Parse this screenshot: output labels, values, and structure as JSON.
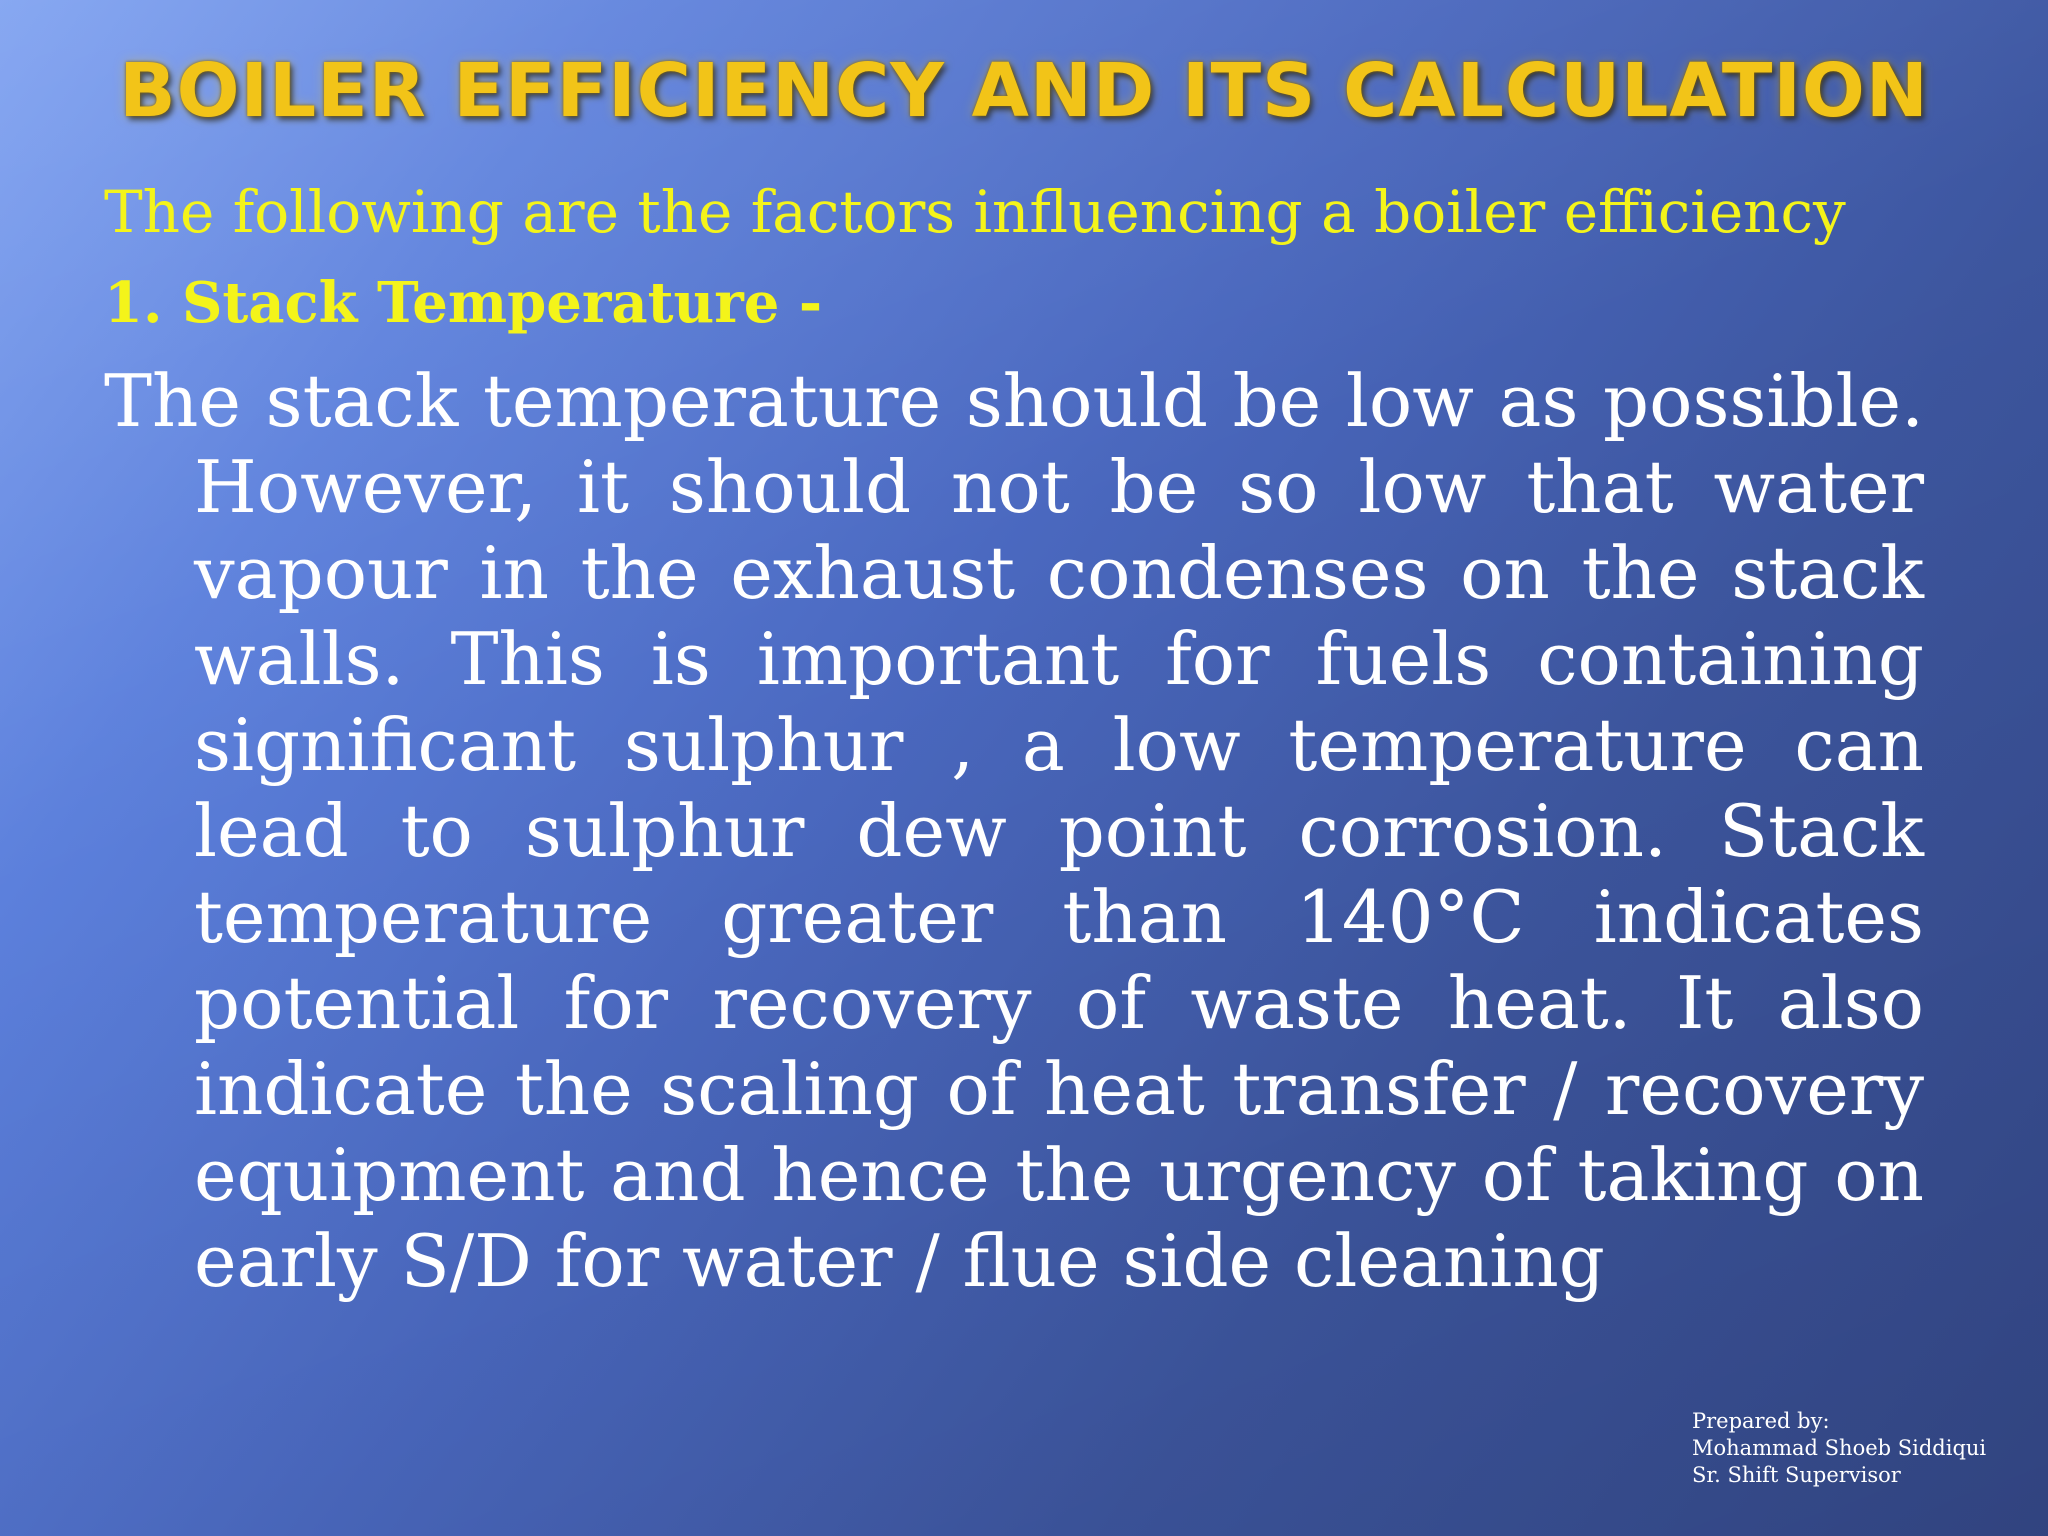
{
  "slide": {
    "title": "BOILER EFFICIENCY AND ITS CALCULATION",
    "intro": "The following are the factors influencing a boiler efficiency",
    "heading": "1. Stack Temperature -",
    "body": "The stack temperature should be low as possible. However, it should not be so low that water vapour in the exhaust condenses on the stack walls. This is important for fuels containing significant sulphur , a low temperature can lead to sulphur dew point corrosion. Stack temperature greater than 140°C indicates potential for recovery of waste heat. It also indicate the scaling of heat transfer / recovery equipment and hence the urgency of taking on early S/D for water / flue side cleaning",
    "footer": {
      "line1": "Prepared by:",
      "line2": "Mohammad Shoeb Siddiqui",
      "line3": "Sr. Shift Supervisor"
    }
  },
  "colors": {
    "title": "#f2c418",
    "subtitle": "#f4f41a",
    "body": "#ffffff",
    "background": "#4a68bf"
  }
}
